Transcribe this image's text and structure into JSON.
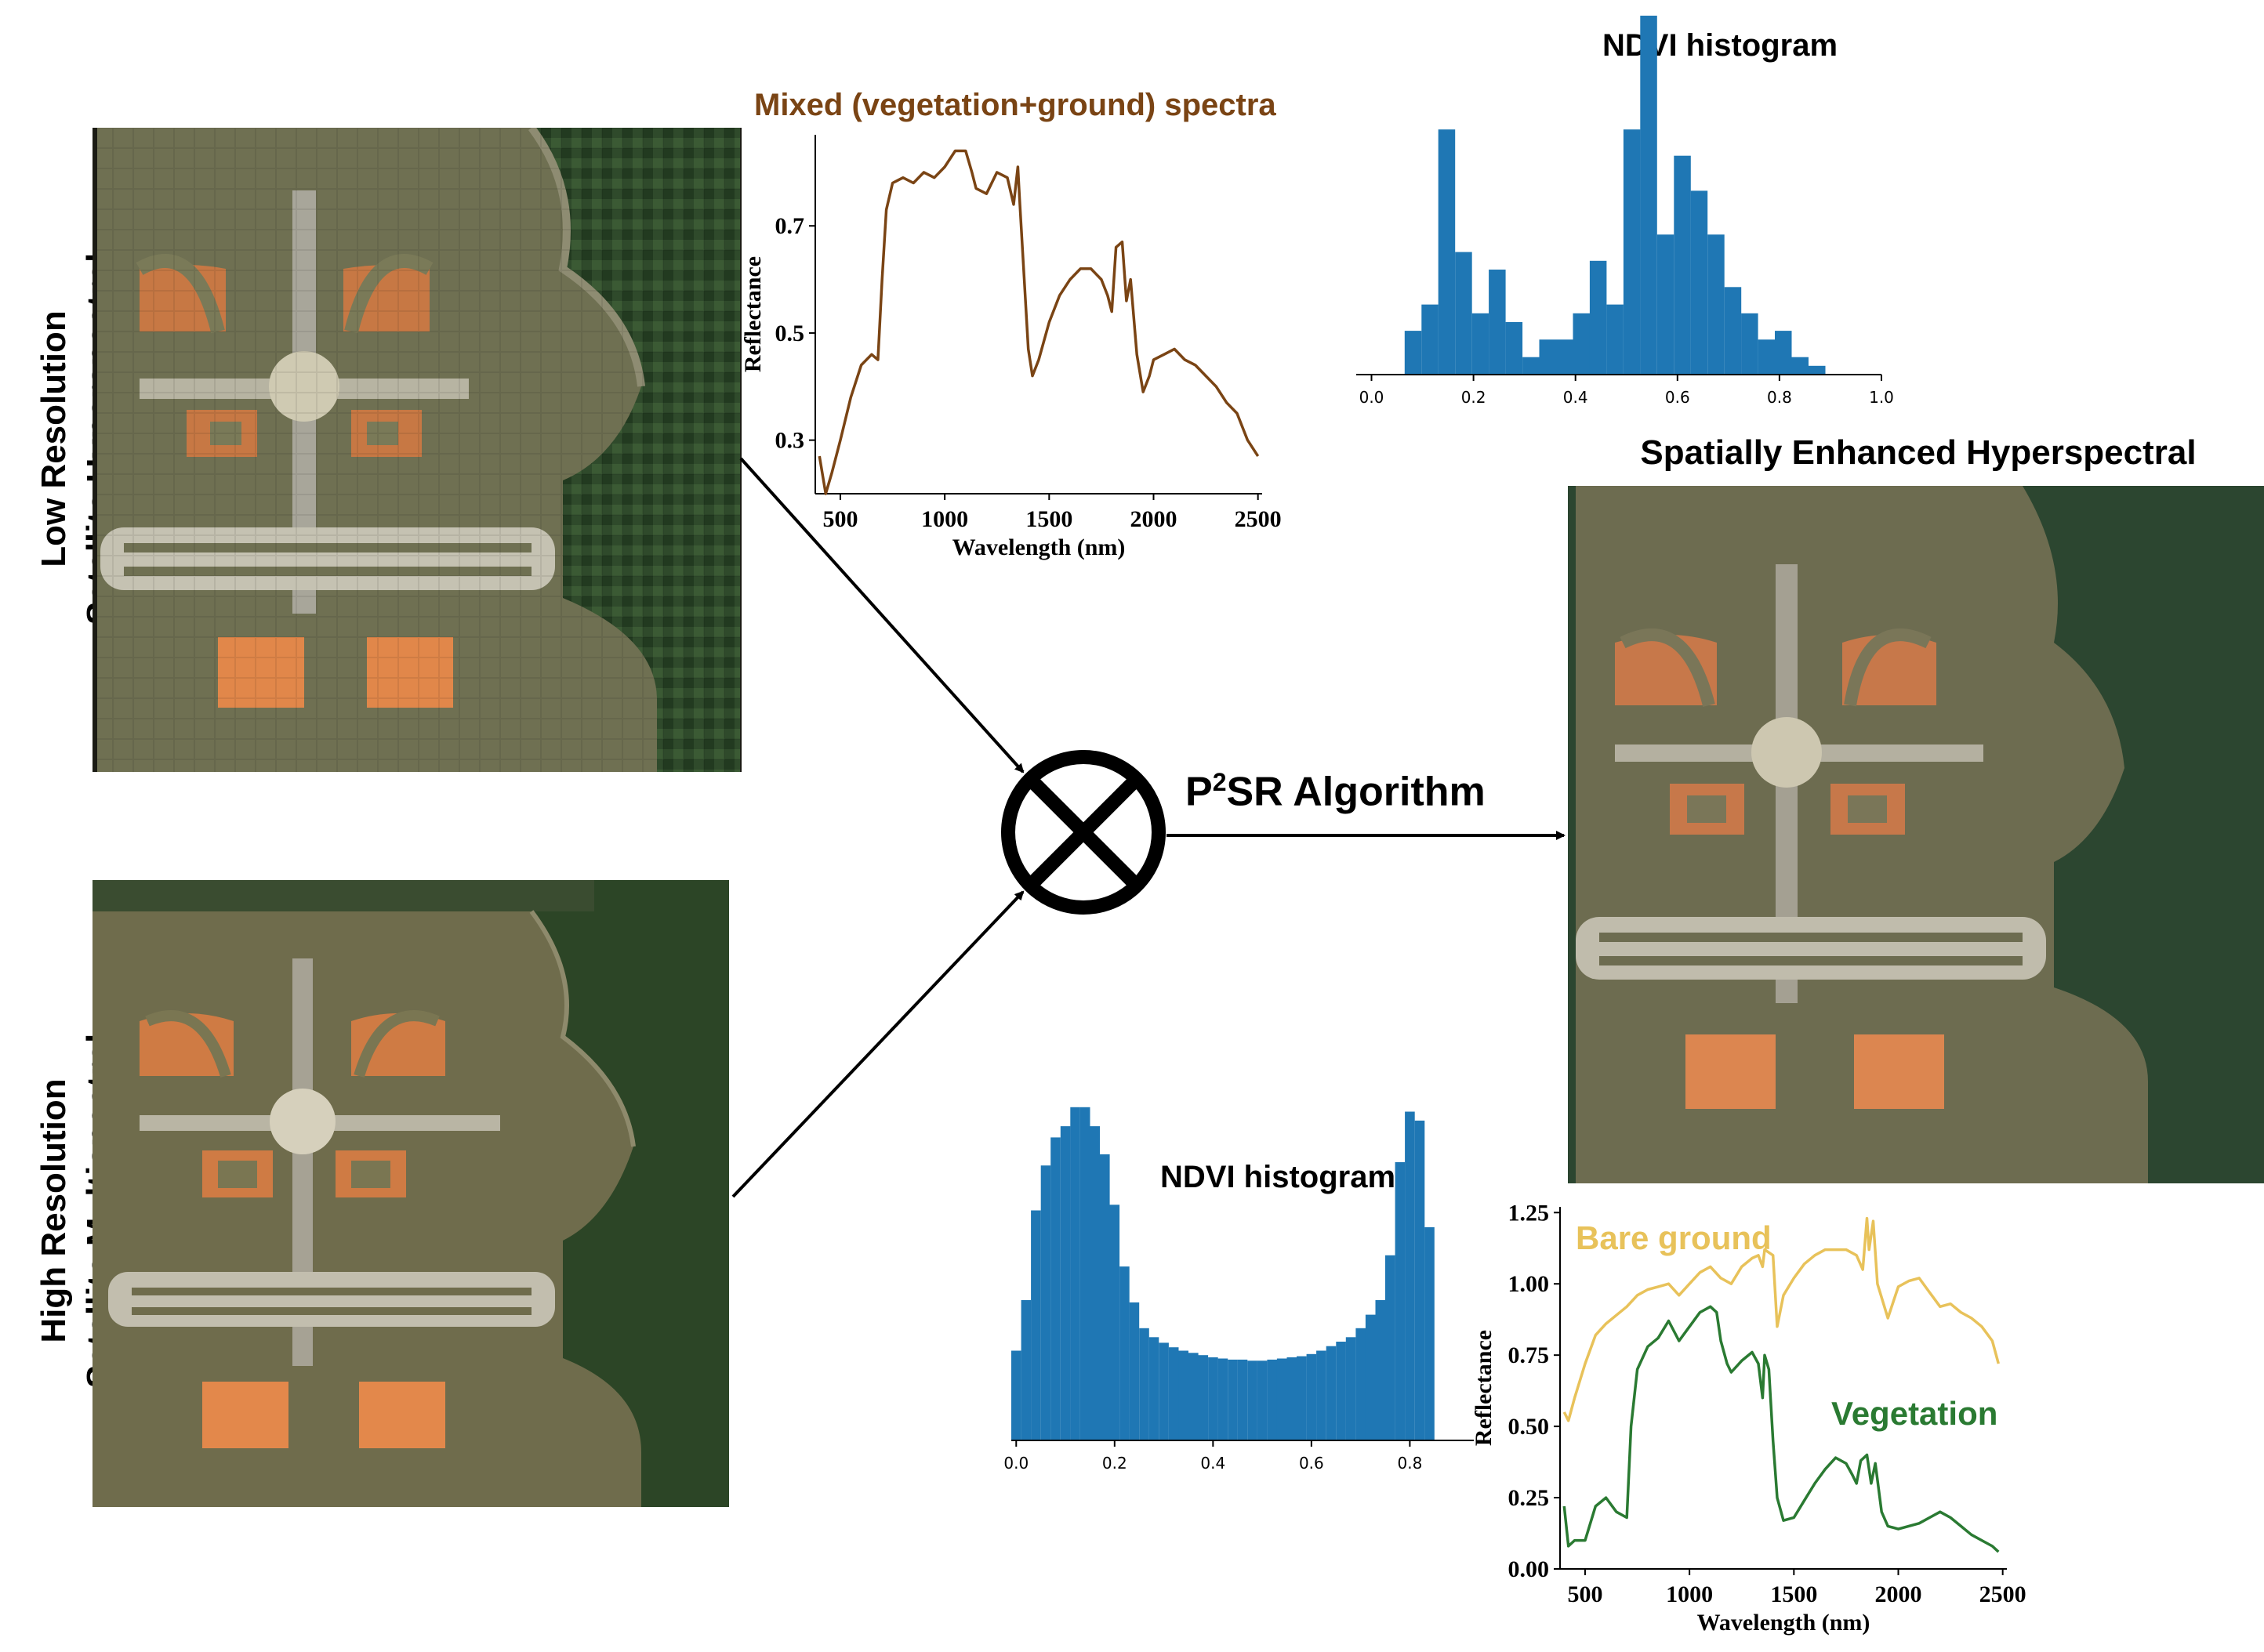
{
  "labels": {
    "low_res_line1": "Low Resolution",
    "low_res_line2": "Satellite Hyperspectral",
    "high_res_line1": "High Resolution",
    "high_res_line2": "Satellite Multispectral",
    "enhanced_title": "Spatially Enhanced Hyperspectral",
    "algorithm_prefix": "P",
    "algorithm_sup": "2",
    "algorithm_suffix": "SR Algorithm"
  },
  "colors": {
    "mixed_spectra": "#7a4414",
    "histogram_bar": "#1f77b4",
    "bare_ground": "#e8c25a",
    "vegetation": "#2a7a32",
    "infield_dirt": "#d9874a",
    "grass": "#7a7a56",
    "forest": "#2d4a2a"
  },
  "chart_data": [
    {
      "type": "line",
      "title": "Mixed (vegetation+ground) spectra",
      "xlabel": "Wavelength (nm)",
      "ylabel": "Reflectance",
      "xlim": [
        380,
        2520
      ],
      "ylim": [
        0.2,
        0.87
      ],
      "xticks": [
        500,
        1000,
        1500,
        2000,
        2500
      ],
      "yticks": [
        0.3,
        0.5,
        0.7
      ],
      "series": [
        {
          "color": "#7a4414",
          "x": [
            400,
            430,
            460,
            500,
            550,
            600,
            650,
            680,
            700,
            720,
            750,
            800,
            850,
            900,
            950,
            1000,
            1050,
            1100,
            1130,
            1150,
            1200,
            1250,
            1300,
            1330,
            1350,
            1360,
            1400,
            1420,
            1450,
            1500,
            1550,
            1600,
            1650,
            1700,
            1750,
            1780,
            1800,
            1820,
            1850,
            1870,
            1890,
            1920,
            1950,
            1980,
            2000,
            2050,
            2100,
            2150,
            2200,
            2250,
            2300,
            2350,
            2400,
            2450,
            2500
          ],
          "y": [
            0.27,
            0.2,
            0.24,
            0.3,
            0.38,
            0.44,
            0.46,
            0.45,
            0.6,
            0.73,
            0.78,
            0.79,
            0.78,
            0.8,
            0.79,
            0.81,
            0.84,
            0.84,
            0.8,
            0.77,
            0.76,
            0.8,
            0.79,
            0.74,
            0.81,
            0.74,
            0.47,
            0.42,
            0.45,
            0.52,
            0.57,
            0.6,
            0.62,
            0.62,
            0.6,
            0.57,
            0.54,
            0.66,
            0.67,
            0.56,
            0.6,
            0.46,
            0.39,
            0.42,
            0.45,
            0.46,
            0.47,
            0.45,
            0.44,
            0.42,
            0.4,
            0.37,
            0.35,
            0.3,
            0.27
          ]
        }
      ]
    },
    {
      "type": "bar",
      "title": "NDVI histogram",
      "xlim": [
        -0.03,
        1.0
      ],
      "xticks": [
        0.0,
        0.2,
        0.4,
        0.6,
        0.8,
        1.0
      ],
      "bin_width": 0.033,
      "bin_start": 0.065,
      "values": [
        5,
        8,
        28,
        14,
        7,
        12,
        6,
        2,
        4,
        4,
        7,
        13,
        8,
        28,
        41,
        16,
        25,
        21,
        16,
        10,
        7,
        4,
        5,
        2,
        1
      ]
    },
    {
      "type": "bar",
      "title": "NDVI histogram",
      "xlim": [
        -0.01,
        0.93
      ],
      "xticks": [
        0.0,
        0.2,
        0.4,
        0.6,
        0.8
      ],
      "bin_width": 0.02,
      "bin_start": -0.01,
      "values": [
        80,
        125,
        205,
        245,
        270,
        280,
        297,
        297,
        280,
        255,
        210,
        155,
        123,
        100,
        92,
        87,
        83,
        80,
        78,
        76,
        74,
        73,
        72,
        72,
        71,
        71,
        72,
        73,
        74,
        75,
        77,
        80,
        84,
        88,
        92,
        100,
        112,
        125,
        165,
        248,
        293,
        285,
        190
      ]
    },
    {
      "type": "line",
      "xlabel": "Wavelength (nm)",
      "ylabel": "Reflectance",
      "xlim": [
        380,
        2520
      ],
      "ylim": [
        0.0,
        1.27
      ],
      "xticks": [
        500,
        1000,
        1500,
        2000,
        2500
      ],
      "yticks": [
        0.0,
        0.25,
        0.5,
        0.75,
        1.0,
        1.25
      ],
      "series": [
        {
          "name": "Bare ground",
          "color": "#e8c25a",
          "x": [
            400,
            420,
            450,
            500,
            550,
            600,
            650,
            700,
            750,
            800,
            850,
            900,
            950,
            1000,
            1050,
            1100,
            1150,
            1200,
            1250,
            1300,
            1330,
            1350,
            1360,
            1400,
            1420,
            1450,
            1500,
            1550,
            1600,
            1650,
            1700,
            1750,
            1800,
            1830,
            1850,
            1860,
            1880,
            1900,
            1950,
            2000,
            2050,
            2100,
            2150,
            2200,
            2250,
            2300,
            2350,
            2400,
            2450,
            2480
          ],
          "y": [
            0.55,
            0.52,
            0.6,
            0.72,
            0.82,
            0.86,
            0.89,
            0.92,
            0.96,
            0.98,
            0.99,
            1.0,
            0.96,
            1.0,
            1.04,
            1.06,
            1.02,
            1.0,
            1.06,
            1.09,
            1.1,
            1.06,
            1.12,
            1.1,
            0.85,
            0.96,
            1.02,
            1.07,
            1.1,
            1.12,
            1.12,
            1.12,
            1.1,
            1.05,
            1.23,
            1.12,
            1.22,
            1.0,
            0.88,
            0.99,
            1.01,
            1.02,
            0.97,
            0.92,
            0.93,
            0.9,
            0.88,
            0.85,
            0.8,
            0.72
          ]
        },
        {
          "name": "Vegetation",
          "color": "#2a7a32",
          "x": [
            400,
            420,
            450,
            500,
            550,
            600,
            650,
            700,
            720,
            750,
            800,
            850,
            900,
            950,
            1000,
            1050,
            1100,
            1130,
            1150,
            1180,
            1200,
            1250,
            1300,
            1330,
            1350,
            1360,
            1380,
            1400,
            1420,
            1450,
            1500,
            1550,
            1600,
            1650,
            1700,
            1750,
            1780,
            1800,
            1820,
            1850,
            1870,
            1890,
            1920,
            1950,
            2000,
            2050,
            2100,
            2150,
            2200,
            2250,
            2300,
            2350,
            2400,
            2450,
            2480
          ],
          "y": [
            0.22,
            0.08,
            0.1,
            0.1,
            0.22,
            0.25,
            0.2,
            0.18,
            0.5,
            0.7,
            0.78,
            0.81,
            0.87,
            0.8,
            0.85,
            0.9,
            0.92,
            0.9,
            0.8,
            0.72,
            0.69,
            0.73,
            0.76,
            0.72,
            0.6,
            0.75,
            0.7,
            0.45,
            0.25,
            0.17,
            0.18,
            0.24,
            0.3,
            0.35,
            0.39,
            0.37,
            0.33,
            0.3,
            0.38,
            0.4,
            0.3,
            0.37,
            0.2,
            0.15,
            0.14,
            0.15,
            0.16,
            0.18,
            0.2,
            0.18,
            0.15,
            0.12,
            0.1,
            0.08,
            0.06
          ]
        }
      ]
    }
  ]
}
